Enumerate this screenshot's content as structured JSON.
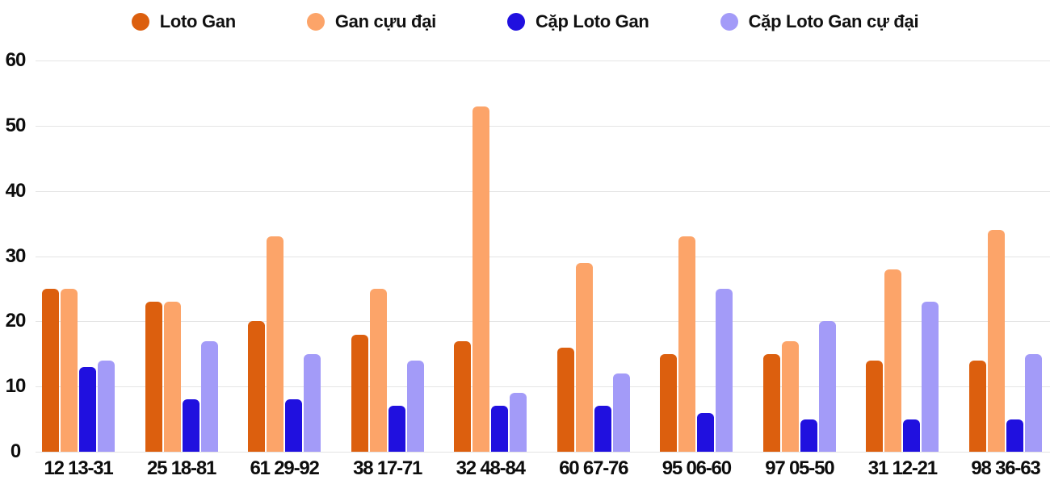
{
  "chart_data": {
    "type": "bar",
    "title": "",
    "xlabel": "",
    "ylabel": "",
    "ylim": [
      0,
      60
    ],
    "yticks": [
      0,
      10,
      20,
      30,
      40,
      50,
      60
    ],
    "grid": true,
    "legend_position": "top",
    "categories": [
      "12 13-31",
      "25 18-81",
      "61 29-92",
      "38 17-71",
      "32 48-84",
      "60 67-76",
      "95 06-60",
      "97 05-50",
      "31 12-21",
      "98 36-63"
    ],
    "series": [
      {
        "name": "Loto Gan",
        "color": "#DC5F0E",
        "values": [
          25,
          23,
          20,
          18,
          17,
          16,
          15,
          15,
          14,
          14
        ]
      },
      {
        "name": "Gan cựu đại",
        "color": "#FCA469",
        "values": [
          25,
          23,
          33,
          25,
          53,
          29,
          33,
          17,
          28,
          34
        ]
      },
      {
        "name": "Cặp Loto Gan",
        "color": "#2010DF",
        "values": [
          13,
          8,
          8,
          7,
          7,
          7,
          6,
          5,
          5,
          5
        ]
      },
      {
        "name": "Cặp Loto Gan cự đại",
        "color": "#A39BF8",
        "values": [
          14,
          17,
          15,
          14,
          9,
          12,
          25,
          20,
          23,
          15
        ]
      }
    ],
    "colors": {
      "text": "#0d0d0d",
      "gridline": "#e4e4e4",
      "background": "#ffffff"
    }
  }
}
